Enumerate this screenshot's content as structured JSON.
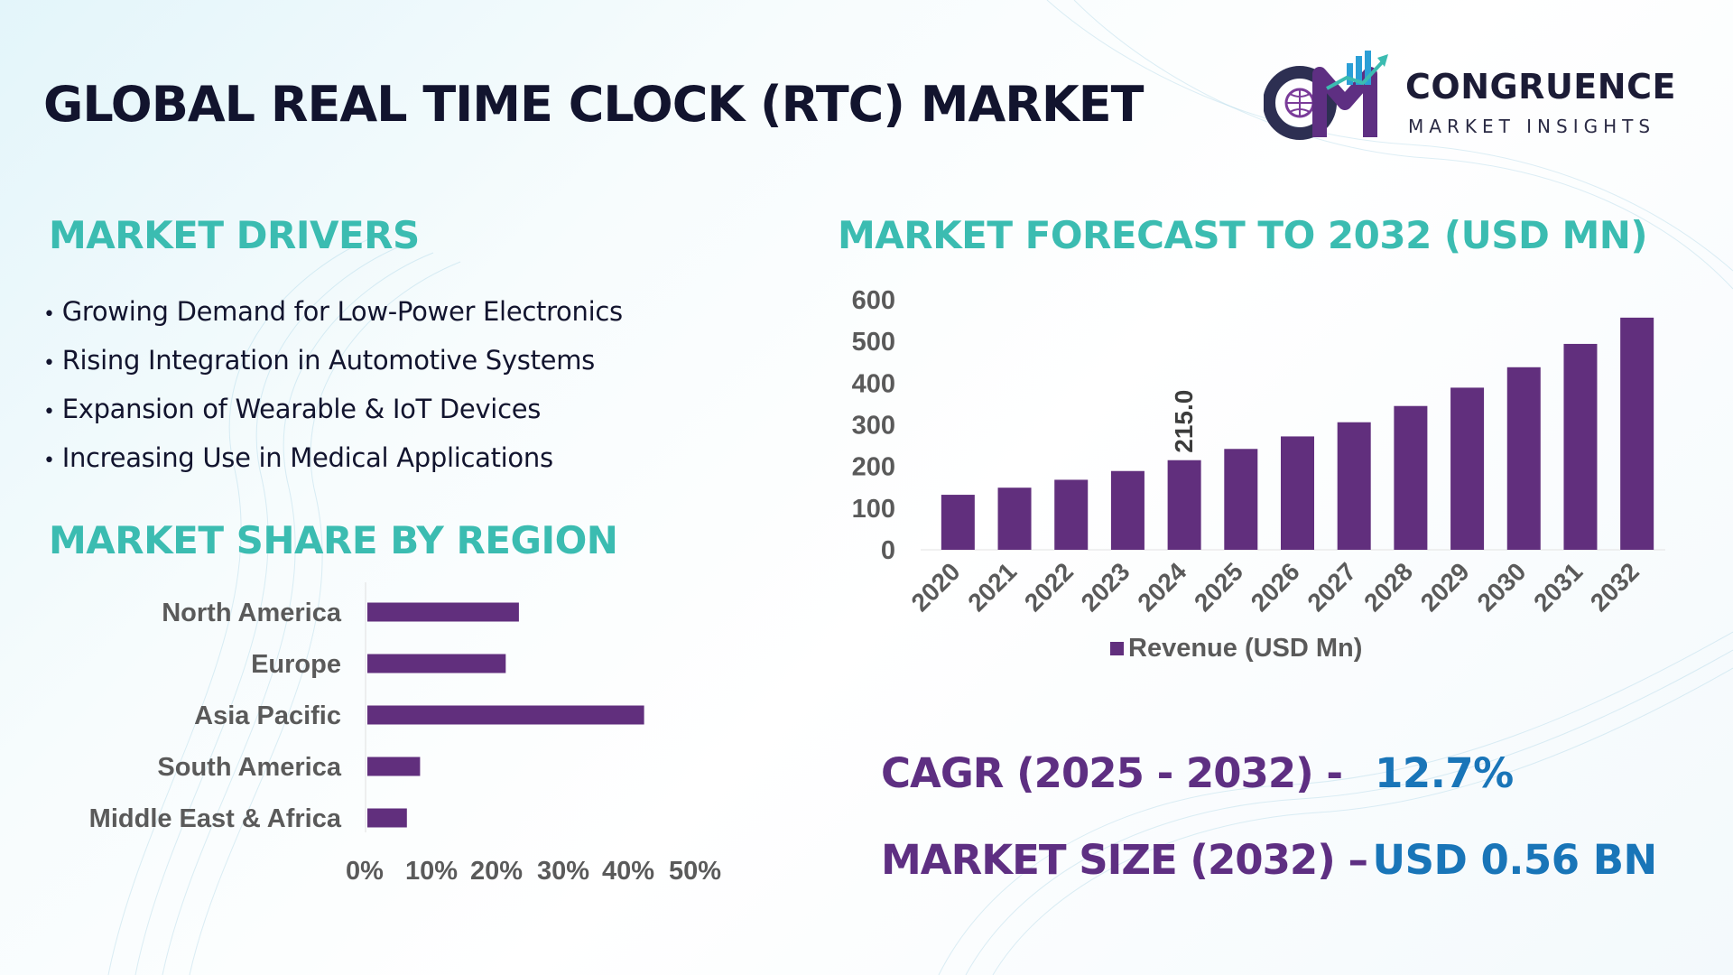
{
  "header": {
    "title": "GLOBAL REAL TIME CLOCK (RTC) MARKET"
  },
  "brand": {
    "logo_letters": "CM",
    "name": "CONGRUENCE",
    "tagline": "MARKET INSIGHTS"
  },
  "drivers": {
    "title": "MARKET DRIVERS",
    "items": [
      "Growing Demand for Low-Power Electronics",
      "Rising Integration in Automotive Systems",
      "Expansion of Wearable & IoT Devices",
      "Increasing Use in Medical Applications"
    ]
  },
  "region": {
    "title": "MARKET SHARE BY REGION"
  },
  "forecast": {
    "title": "MARKET FORECAST TO 2032 (USD MN)"
  },
  "kpis": {
    "cagr_label": "CAGR (2025 - 2032) -",
    "cagr_value": "12.7%",
    "size_label": "MARKET SIZE (2032) –",
    "size_value": "USD 0.56 BN"
  },
  "colors": {
    "bar": "#612f7d",
    "heading": "#3bbcb1",
    "kpi_label": "#5e2f82",
    "kpi_value": "#1975b8",
    "title": "#12142e"
  },
  "chart_data": [
    {
      "type": "bar",
      "orientation": "horizontal",
      "categories": [
        "North America",
        "Europe",
        "Asia Pacific",
        "South America",
        "Middle East & Africa"
      ],
      "values": [
        23,
        21,
        42,
        8,
        6
      ],
      "unit": "%",
      "xlim": [
        0,
        50
      ],
      "xticks": [
        "0%",
        "10%",
        "20%",
        "30%",
        "40%",
        "50%"
      ],
      "grid": false,
      "legend": "none"
    },
    {
      "type": "bar",
      "categories": [
        "2020",
        "2021",
        "2022",
        "2023",
        "2024",
        "2025",
        "2026",
        "2027",
        "2028",
        "2029",
        "2030",
        "2031",
        "2032"
      ],
      "series": [
        {
          "name": "Revenue (USD Mn)",
          "values": [
            132,
            149,
            168,
            189,
            215,
            242,
            272,
            306,
            345,
            389,
            438,
            494,
            557
          ]
        }
      ],
      "data_labels": [
        {
          "index": 4,
          "text": "215.0"
        }
      ],
      "ylim": [
        0,
        600
      ],
      "yticks": [
        "0",
        "100",
        "200",
        "300",
        "400",
        "500",
        "600"
      ],
      "grid": false,
      "legend": "bottom"
    }
  ]
}
